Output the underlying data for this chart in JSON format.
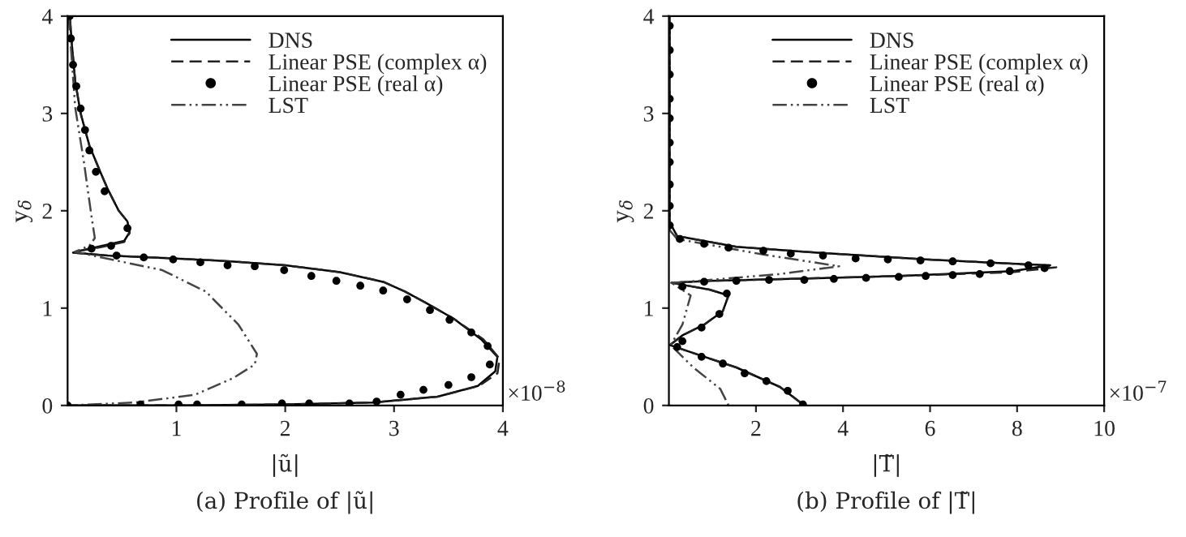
{
  "chart_data": [
    {
      "type": "line",
      "xlabel": "|ũ|",
      "ylabel": "y$_{δ}$",
      "xlim": [
        0,
        4
      ],
      "ylim": [
        0,
        4
      ],
      "xticks": [
        1,
        2,
        3,
        4
      ],
      "yticks": [
        0,
        1,
        2,
        3,
        4
      ],
      "grid": false,
      "legend": "top right",
      "annotations": [
        "×10$^{−8}$",
        "(a) Profile of |ũ|"
      ],
      "series": [
        {
          "name": "DNS",
          "line_style": "solid",
          "color": "#000000",
          "x": [
            0.02,
            0.04,
            0.07,
            0.12,
            0.2,
            0.3,
            0.37,
            0.47,
            0.55,
            0.57,
            0.52,
            0.32,
            0.12,
            0.05,
            0.37,
            1.0,
            1.5,
            2.0,
            2.5,
            2.9,
            3.1,
            3.3,
            3.55,
            3.8,
            3.95,
            3.93,
            3.77,
            3.4,
            2.8,
            2.0,
            1.0,
            0.0
          ],
          "values": [
            4.0,
            3.7,
            3.33,
            3.0,
            2.67,
            2.4,
            2.22,
            2.0,
            1.89,
            1.78,
            1.69,
            1.64,
            1.59,
            1.57,
            1.54,
            1.51,
            1.48,
            1.44,
            1.37,
            1.27,
            1.17,
            1.05,
            0.89,
            0.68,
            0.5,
            0.35,
            0.2,
            0.09,
            0.03,
            0.01,
            0.0,
            0.0
          ]
        },
        {
          "name": "Linear PSE (complex α)",
          "line_style": "dashed",
          "color": "#222222",
          "x": [
            0.02,
            0.04,
            0.07,
            0.12,
            0.2,
            0.3,
            0.37,
            0.47,
            0.55,
            0.57,
            0.52,
            0.32,
            0.12,
            0.05,
            0.37,
            1.0,
            1.5,
            2.0,
            2.5,
            2.9,
            3.1,
            3.3,
            3.55,
            3.82,
            3.97,
            3.95,
            3.78,
            3.4,
            2.8,
            2.0,
            1.0,
            0.0
          ],
          "values": [
            4.0,
            3.7,
            3.33,
            3.0,
            2.67,
            2.4,
            2.22,
            2.0,
            1.89,
            1.77,
            1.68,
            1.63,
            1.59,
            1.57,
            1.54,
            1.51,
            1.48,
            1.44,
            1.37,
            1.27,
            1.17,
            1.05,
            0.89,
            0.68,
            0.48,
            0.33,
            0.2,
            0.09,
            0.03,
            0.01,
            0.0,
            0.0
          ]
        },
        {
          "name": "Linear PSE (real α)",
          "type": "scatter",
          "marker": "circle",
          "color": "#000000",
          "x": [
            0.02,
            0.03,
            0.05,
            0.08,
            0.12,
            0.16,
            0.2,
            0.26,
            0.34,
            0.55,
            0.4,
            0.22,
            0.45,
            0.7,
            0.97,
            1.22,
            1.47,
            1.72,
            1.99,
            2.24,
            2.47,
            2.69,
            2.9,
            3.12,
            3.33,
            3.51,
            3.71,
            3.86,
            3.88,
            3.71,
            3.5,
            3.27,
            3.06,
            2.84,
            2.59,
            2.22,
            1.97,
            1.6,
            1.19,
            1.02,
            0.67,
            0.0
          ],
          "values": [
            4.0,
            3.77,
            3.5,
            3.28,
            3.05,
            2.83,
            2.62,
            2.4,
            2.2,
            1.82,
            1.64,
            1.61,
            1.54,
            1.52,
            1.5,
            1.47,
            1.44,
            1.43,
            1.39,
            1.33,
            1.28,
            1.23,
            1.18,
            1.09,
            0.98,
            0.88,
            0.75,
            0.61,
            0.42,
            0.29,
            0.21,
            0.16,
            0.11,
            0.04,
            0.02,
            0.02,
            0.02,
            0.01,
            0.01,
            0.01,
            0.01,
            0.0
          ]
        },
        {
          "name": "LST",
          "line_style": "dashdot",
          "color": "#444444",
          "x": [
            0.01,
            0.07,
            0.15,
            0.22,
            0.25,
            0.2,
            0.07,
            0.27,
            0.87,
            1.27,
            1.57,
            1.74,
            1.72,
            1.52,
            1.17,
            0.62,
            0.0
          ],
          "values": [
            4.0,
            3.06,
            2.5,
            1.94,
            1.72,
            1.64,
            1.58,
            1.53,
            1.39,
            1.17,
            0.83,
            0.53,
            0.42,
            0.28,
            0.11,
            0.03,
            0.0
          ]
        }
      ]
    },
    {
      "type": "line",
      "xlabel": "|T̃|",
      "ylabel": "y$_{δ}$",
      "xlim": [
        0,
        10
      ],
      "ylim": [
        0,
        4
      ],
      "xticks": [
        2,
        4,
        6,
        8,
        10
      ],
      "yticks": [
        0,
        1,
        2,
        3,
        4
      ],
      "grid": false,
      "legend": "top right",
      "annotations": [
        "×10$^{−7}$",
        "(b) Profile of |T̃|"
      ],
      "series": [
        {
          "name": "DNS",
          "line_style": "solid",
          "color": "#000000",
          "x": [
            0.02,
            0.02,
            0.19,
            1.55,
            3.4,
            5.9,
            7.76,
            8.76,
            7.9,
            5.28,
            2.8,
            0.93,
            0.06,
            0.93,
            1.37,
            1.24,
            0.81,
            0.31,
            0.02,
            0.68,
            1.55,
            2.55,
            3.11
          ],
          "values": [
            4.0,
            1.88,
            1.74,
            1.63,
            1.57,
            1.5,
            1.46,
            1.44,
            1.38,
            1.33,
            1.3,
            1.28,
            1.26,
            1.19,
            1.13,
            0.97,
            0.83,
            0.72,
            0.62,
            0.52,
            0.39,
            0.19,
            0.0
          ]
        },
        {
          "name": "Linear PSE (complex α)",
          "line_style": "dashed",
          "color": "#222222",
          "x": [
            0.02,
            0.02,
            0.19,
            1.55,
            3.4,
            5.9,
            7.8,
            8.9,
            7.9,
            5.28,
            2.8,
            0.93,
            0.06,
            0.93,
            1.37,
            1.24,
            0.81,
            0.31,
            0.02,
            0.68,
            1.55,
            2.55,
            3.11
          ],
          "values": [
            4.0,
            1.88,
            1.74,
            1.63,
            1.57,
            1.5,
            1.46,
            1.42,
            1.37,
            1.33,
            1.3,
            1.28,
            1.26,
            1.19,
            1.13,
            0.97,
            0.83,
            0.72,
            0.62,
            0.52,
            0.39,
            0.19,
            0.0
          ]
        },
        {
          "name": "Linear PSE (real α)",
          "type": "scatter",
          "marker": "circle",
          "color": "#000000",
          "x": [
            0.02,
            0.02,
            0.02,
            0.02,
            0.02,
            0.02,
            0.02,
            0.02,
            0.02,
            0.02,
            0.25,
            0.81,
            1.37,
            2.17,
            2.8,
            3.54,
            4.29,
            5.03,
            5.78,
            6.52,
            7.39,
            8.26,
            8.63,
            7.83,
            7.14,
            6.52,
            5.9,
            5.28,
            4.53,
            3.79,
            3.11,
            2.3,
            1.55,
            0.81,
            0.31,
            1.33,
            1.16,
            0.75,
            0.31,
            0.19,
            0.75,
            1.24,
            1.74,
            2.24,
            2.73,
            3.08
          ],
          "values": [
            3.9,
            3.65,
            3.4,
            3.15,
            2.95,
            2.7,
            2.5,
            2.27,
            2.05,
            1.85,
            1.71,
            1.66,
            1.62,
            1.59,
            1.56,
            1.54,
            1.51,
            1.5,
            1.49,
            1.48,
            1.46,
            1.44,
            1.41,
            1.38,
            1.35,
            1.34,
            1.33,
            1.32,
            1.31,
            1.3,
            1.29,
            1.29,
            1.28,
            1.27,
            1.22,
            1.15,
            0.94,
            0.8,
            0.66,
            0.6,
            0.5,
            0.43,
            0.33,
            0.25,
            0.15,
            0.01
          ]
        },
        {
          "name": "LST",
          "line_style": "dashdot",
          "color": "#444444",
          "x": [
            0.02,
            0.02,
            0.19,
            2.17,
            3.91,
            2.55,
            0.68,
            0.06,
            0.5,
            0.31,
            0.04,
            0.56,
            1.18,
            1.37
          ],
          "values": [
            4.0,
            1.8,
            1.71,
            1.55,
            1.43,
            1.35,
            1.28,
            1.26,
            1.13,
            0.83,
            0.62,
            0.39,
            0.17,
            0.0
          ]
        }
      ]
    }
  ]
}
